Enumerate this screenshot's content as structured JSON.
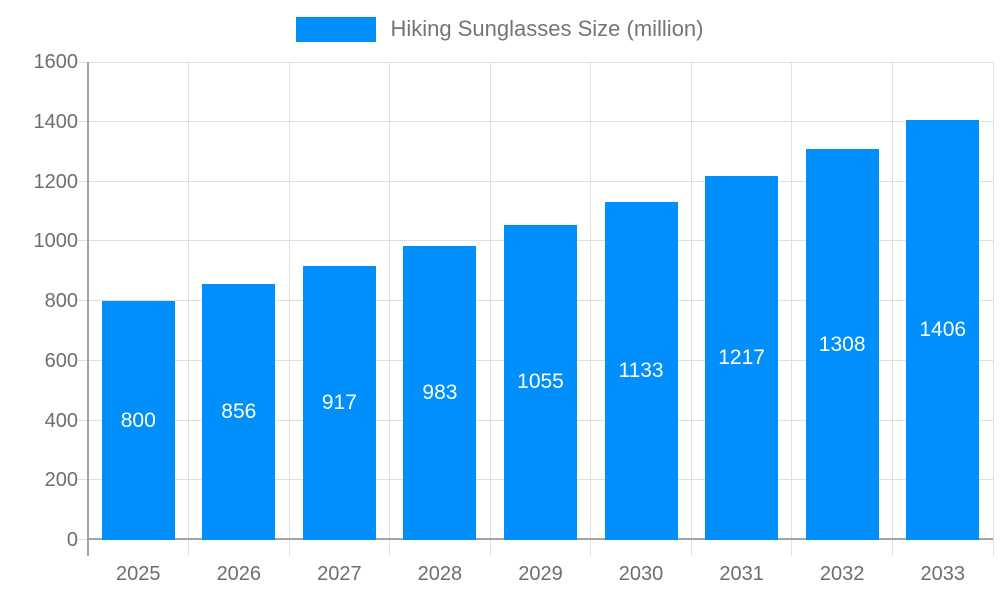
{
  "chart_data": {
    "type": "bar",
    "title": "Hiking Sunglasses Size (million)",
    "categories": [
      "2025",
      "2026",
      "2027",
      "2028",
      "2029",
      "2030",
      "2031",
      "2032",
      "2033"
    ],
    "series": [
      {
        "name": "Hiking Sunglasses Size (million)",
        "values": [
          800,
          856,
          917,
          983,
          1055,
          1133,
          1217,
          1308,
          1406
        ]
      }
    ],
    "value_labels_shown": true,
    "value_label_position": "inside-center",
    "xlabel": "",
    "ylabel": "",
    "ylim": [
      0,
      1600
    ],
    "yticks": [
      0,
      200,
      400,
      600,
      800,
      1000,
      1200,
      1400,
      1600
    ],
    "grid": true,
    "legend_position": "top-center",
    "colors": {
      "bar": "#008FFB",
      "value_label": "#ffffff",
      "axis_text": "#6e6e6e",
      "legend_text": "#757575",
      "grid_line": "#e0e0e0",
      "axis_line": "#a3a3a3",
      "background": "#ffffff"
    }
  }
}
